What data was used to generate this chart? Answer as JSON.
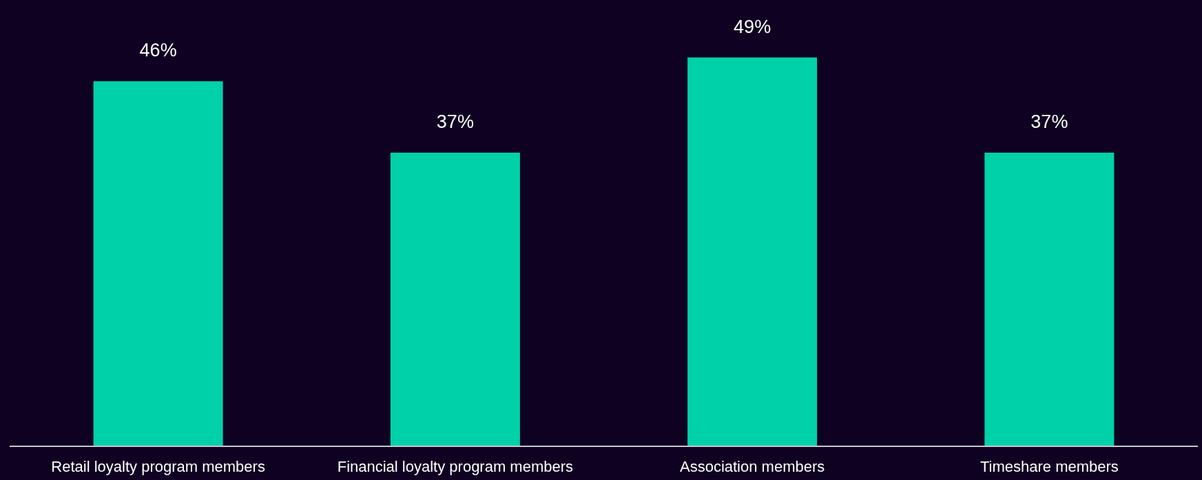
{
  "chart_data": {
    "type": "bar",
    "categories": [
      "Retail loyalty program members",
      "Financial loyalty program members",
      "Association members",
      "Timeshare members"
    ],
    "values": [
      46,
      37,
      49,
      37
    ],
    "color": "#00d1a9",
    "value_labels": [
      "46%",
      "37%",
      "49%",
      "37%"
    ]
  }
}
